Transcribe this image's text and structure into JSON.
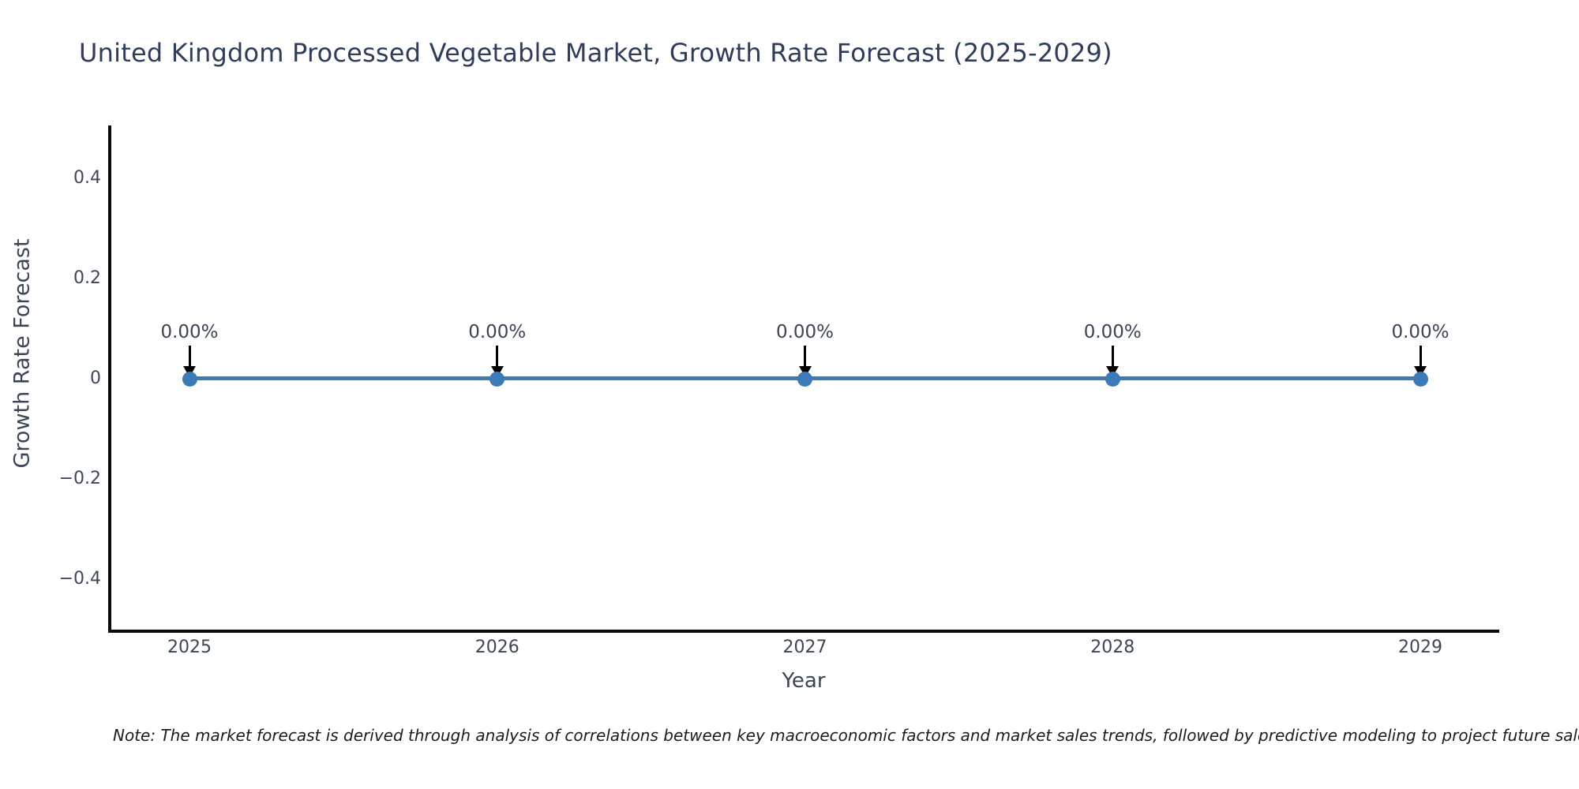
{
  "note": {
    "text": "Note: The market forecast is derived through analysis of correlations between key macroeconomic factors and market sales trends, followed by predictive modeling to project future sales."
  },
  "chart_data": {
    "type": "line",
    "title": "United Kingdom Processed Vegetable Market, Growth Rate Forecast (2025-2029)",
    "xlabel": "Year",
    "ylabel": "Growth Rate Forecast",
    "x": [
      2025,
      2026,
      2027,
      2028,
      2029
    ],
    "series": [
      {
        "name": "Growth Rate Forecast",
        "values": [
          0,
          0,
          0,
          0,
          0
        ]
      }
    ],
    "point_labels": [
      "0.00%",
      "0.00%",
      "0.00%",
      "0.00%",
      "0.00%"
    ],
    "xtick_labels": [
      "2025",
      "2026",
      "2027",
      "2028",
      "2029"
    ],
    "ytick_values": [
      0.4,
      0.2,
      0,
      -0.2,
      -0.4
    ],
    "ytick_labels": [
      "0.4",
      "0.2",
      "0",
      "−0.2",
      "−0.4"
    ],
    "ylim": [
      -0.5,
      0.5
    ],
    "grid": false,
    "legend": false,
    "line_color": "#3c7bb7",
    "marker_color": "#3c7bb7",
    "annotation_arrow_color": "#000000",
    "axis_color": "#0a0a0a"
  }
}
